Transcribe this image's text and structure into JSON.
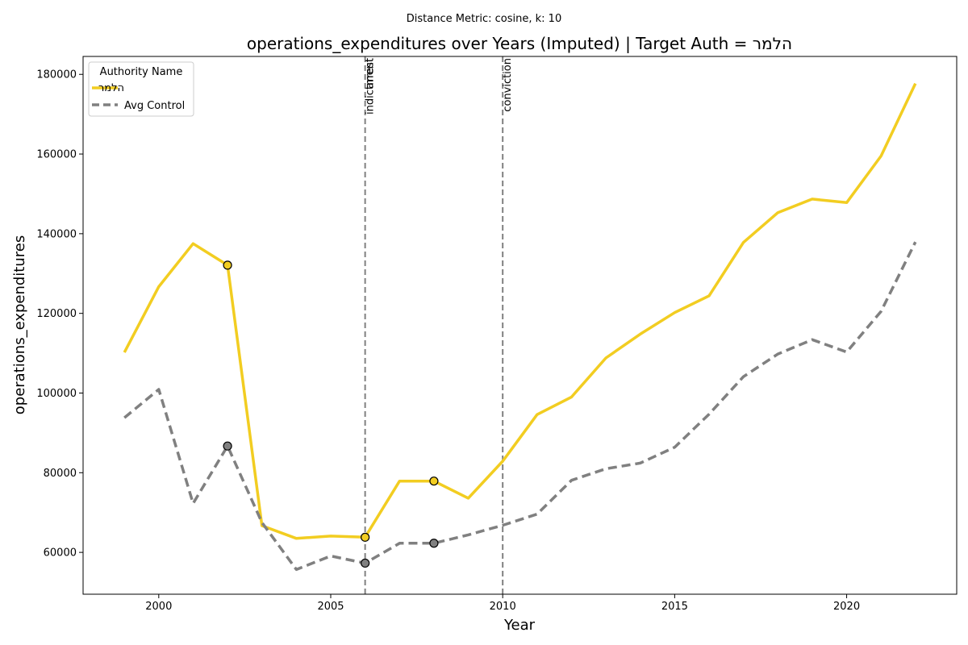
{
  "chart_data": {
    "type": "line",
    "suptitle": "Distance Metric: cosine, k: 10",
    "title": "operations_expenditures over Years (Imputed) | Target Auth = הלמר",
    "xlabel": "Year",
    "ylabel": "operations_expenditures",
    "xlim": [
      1997.8,
      2023.2
    ],
    "ylim": [
      49500,
      184500
    ],
    "xticks": [
      2000,
      2005,
      2010,
      2015,
      2020
    ],
    "yticks": [
      60000,
      80000,
      100000,
      120000,
      140000,
      160000,
      180000
    ],
    "x": [
      1999,
      2000,
      2001,
      2002,
      2003,
      2004,
      2005,
      2006,
      2007,
      2008,
      2009,
      2010,
      2011,
      2012,
      2013,
      2014,
      2015,
      2016,
      2017,
      2018,
      2019,
      2020,
      2021,
      2022
    ],
    "series": [
      {
        "name": "הלמר",
        "color": "#f2cd21",
        "style": "solid",
        "values": [
          110200,
          126700,
          137500,
          132100,
          66700,
          63500,
          64100,
          63800,
          77900,
          77900,
          73600,
          82900,
          94600,
          99000,
          108800,
          114800,
          120200,
          124400,
          137800,
          145300,
          148700,
          147800,
          159500,
          177700
        ],
        "marked_x": [
          2002,
          2006,
          2008
        ]
      },
      {
        "name": "Avg Control",
        "color": "#808080",
        "style": "dashed",
        "values": [
          93800,
          100900,
          72300,
          86700,
          67500,
          55700,
          59100,
          57300,
          62300,
          62300,
          64400,
          66800,
          69600,
          78100,
          81000,
          82400,
          86400,
          94700,
          104100,
          109800,
          113400,
          110300,
          120500,
          137900
        ],
        "marked_x": [
          2002,
          2006,
          2008
        ]
      }
    ],
    "events": [
      {
        "x": 2006,
        "labels": [
          "indictment",
          "arrest"
        ]
      },
      {
        "x": 2010,
        "labels": [
          "conviction"
        ]
      }
    ],
    "legend": {
      "title": "Authority Name",
      "placement": "top-left"
    },
    "grid": false
  }
}
